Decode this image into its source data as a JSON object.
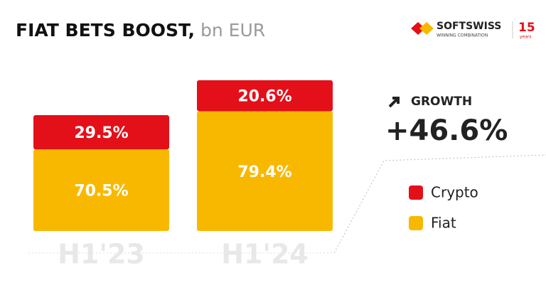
{
  "chart_data": {
    "type": "stacked_bar",
    "title": "FIAT BETS BOOST,",
    "unit": "bn EUR",
    "categories": [
      "H1'23",
      "H1'24"
    ],
    "series": [
      {
        "name": "Crypto",
        "color": "#e3101a",
        "values": [
          29.5,
          20.6
        ],
        "value_labels": [
          "29.5%",
          "20.6%"
        ]
      },
      {
        "name": "Fiat",
        "color": "#f9b800",
        "values": [
          70.5,
          79.4
        ],
        "value_labels": [
          "70.5%",
          "79.4%"
        ]
      }
    ],
    "growth": {
      "label": "GROWTH",
      "value": 46.6,
      "value_label": "+46.6%"
    }
  },
  "logo": {
    "name": "SOFTSWISS",
    "tagline": "WINNING COMBINATION",
    "years": "15",
    "years_label": "years"
  }
}
